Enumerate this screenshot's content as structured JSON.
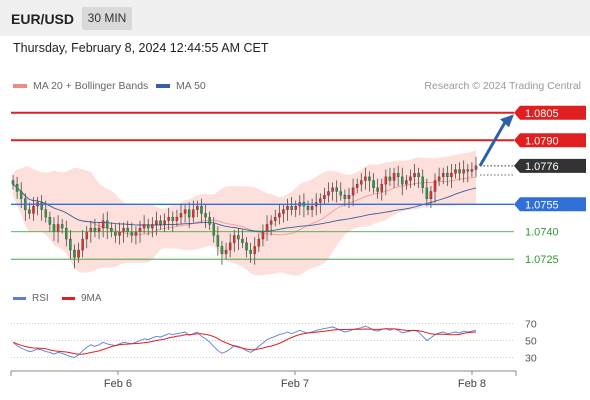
{
  "header": {
    "symbol": "EUR/USD",
    "timeframe": "30 MIN"
  },
  "datetime": "Thursday, February 8, 2024 12:44:55 AM CET",
  "legend": {
    "ma20_label": "MA 20 + Bollinger Bands",
    "ma50_label": "MA 50",
    "ma20_color": "#f08a84",
    "ma50_color": "#3b5f9e"
  },
  "watermark": "Research © 2024 Trading Central",
  "colors": {
    "resistance": "#e02020",
    "support": "#2f6fd6",
    "target": "#2e9a2e",
    "up": "#e03030",
    "down": "#2a9a4a",
    "band": "#fde0dc",
    "arrow": "#2e5fa8",
    "rsi": "#5b7fd6",
    "rsi_ma": "#e02020"
  },
  "chart_data": {
    "type": "candlestick",
    "price_range": [
      1.0718,
      1.0812
    ],
    "x_ticks": [
      "Feb 6",
      "Feb 7",
      "Feb 8"
    ],
    "levels": [
      {
        "value": 1.0805,
        "label": "1.0805",
        "kind": "resistance"
      },
      {
        "value": 1.079,
        "label": "1.0790",
        "kind": "resistance"
      },
      {
        "value": 1.0776,
        "label": "1.0776",
        "kind": "current"
      },
      {
        "value": 1.0755,
        "label": "1.0755",
        "kind": "support"
      },
      {
        "value": 1.074,
        "label": "1.0740",
        "kind": "target"
      },
      {
        "value": 1.0725,
        "label": "1.0725",
        "kind": "target"
      }
    ],
    "close": [
      1.0766,
      1.0762,
      1.0758,
      1.0752,
      1.075,
      1.0754,
      1.0756,
      1.0752,
      1.0748,
      1.0744,
      1.074,
      1.0744,
      1.0742,
      1.0736,
      1.073,
      1.0726,
      1.073,
      1.0736,
      1.074,
      1.0742,
      1.074,
      1.0742,
      1.0746,
      1.0742,
      1.074,
      1.0738,
      1.074,
      1.0742,
      1.074,
      1.0738,
      1.074,
      1.0742,
      1.0744,
      1.0742,
      1.0744,
      1.0746,
      1.0744,
      1.0746,
      1.0748,
      1.0746,
      1.0748,
      1.075,
      1.0752,
      1.0748,
      1.0752,
      1.0754,
      1.075,
      1.0748,
      1.0744,
      1.0738,
      1.0732,
      1.0728,
      1.073,
      1.0734,
      1.0738,
      1.0736,
      1.0734,
      1.073,
      1.0728,
      1.0732,
      1.0736,
      1.074,
      1.0744,
      1.0746,
      1.0748,
      1.075,
      1.0752,
      1.0754,
      1.0752,
      1.0754,
      1.0756,
      1.0754,
      1.0752,
      1.0754,
      1.0756,
      1.0758,
      1.076,
      1.0762,
      1.0764,
      1.0762,
      1.076,
      1.0758,
      1.076,
      1.0764,
      1.0766,
      1.0768,
      1.077,
      1.0768,
      1.0764,
      1.0762,
      1.0766,
      1.077,
      1.0768,
      1.0772,
      1.077,
      1.0766,
      1.0768,
      1.077,
      1.0772,
      1.077,
      1.0764,
      1.0758,
      1.0762,
      1.0768,
      1.077,
      1.0772,
      1.077,
      1.0772,
      1.0774,
      1.0772,
      1.0774,
      1.0773,
      1.0774,
      1.0776
    ],
    "rsi": [
      48,
      44,
      41,
      39,
      37,
      38,
      40,
      39,
      37,
      36,
      34,
      36,
      35,
      33,
      31,
      30,
      33,
      38,
      42,
      45,
      43,
      45,
      48,
      46,
      45,
      44,
      46,
      48,
      47,
      46,
      48,
      50,
      52,
      51,
      53,
      55,
      54,
      56,
      58,
      57,
      58,
      59,
      60,
      56,
      58,
      60,
      55,
      52,
      48,
      43,
      38,
      35,
      37,
      40,
      44,
      43,
      41,
      38,
      36,
      39,
      43,
      47,
      51,
      53,
      55,
      57,
      58,
      60,
      58,
      60,
      62,
      60,
      59,
      60,
      62,
      63,
      64,
      65,
      66,
      64,
      62,
      60,
      61,
      63,
      64,
      65,
      67,
      65,
      62,
      61,
      63,
      64,
      62,
      64,
      62,
      59,
      60,
      61,
      62,
      60,
      55,
      50,
      53,
      57,
      59,
      60,
      58,
      59,
      60,
      59,
      61,
      60,
      61,
      62
    ],
    "rsi_range": [
      20,
      80
    ],
    "rsi_ticks": [
      70,
      50,
      30
    ]
  }
}
